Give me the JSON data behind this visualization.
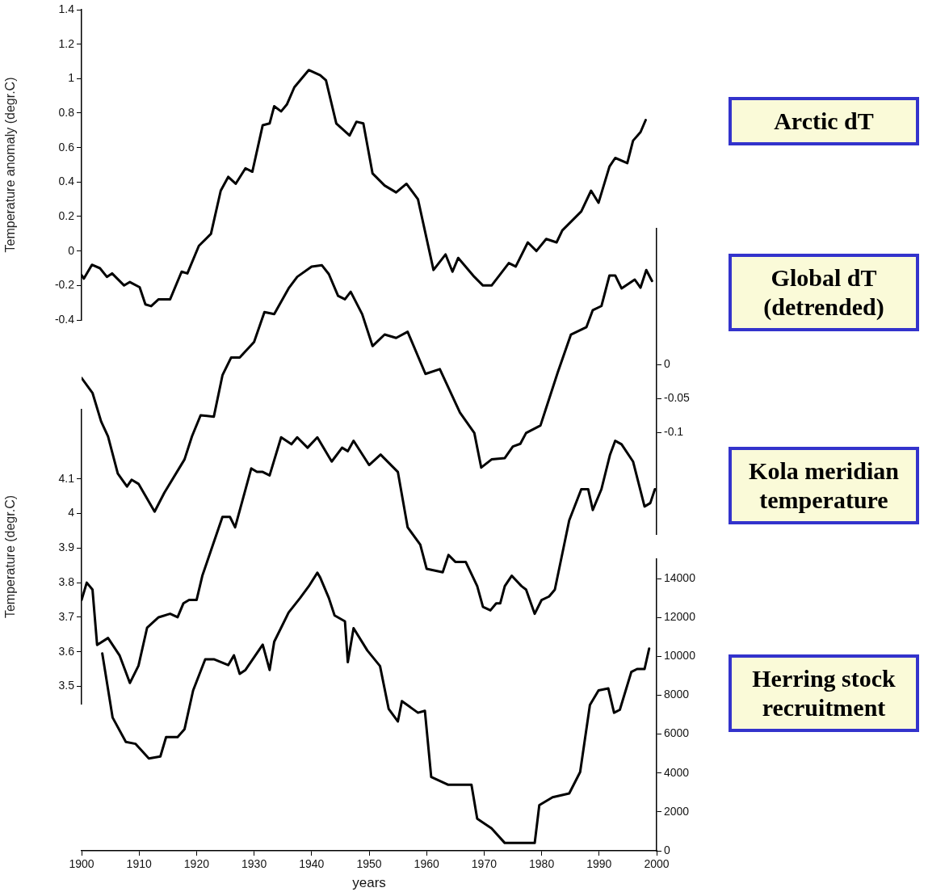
{
  "chart_data": [
    {
      "type": "line",
      "ylabel": "Temperature anomaly (degr.C)",
      "xlim": [
        1900,
        2000
      ],
      "ylim": [
        -0.4,
        1.4
      ],
      "yticks": [
        -0.4,
        -0.2,
        0,
        0.2,
        0.4,
        0.6,
        0.8,
        1,
        1.2,
        1.4
      ],
      "tick_labels": "y",
      "legend": false,
      "grid": false,
      "marker": "none",
      "series": [
        {
          "name": "Arctic dT",
          "color": "#000000",
          "x": [
            1900,
            1900.4,
            1901.8,
            1903.2,
            1904.4,
            1905.3,
            1907.4,
            1908.4,
            1910.1,
            1911.1,
            1912.1,
            1913.4,
            1915.4,
            1917.4,
            1918.4,
            1920.4,
            1922.5,
            1924.2,
            1925.5,
            1926.8,
            1928.5,
            1929.7,
            1931.5,
            1932.7,
            1933.5,
            1934.7,
            1935.7,
            1937,
            1939.5,
            1941.5,
            1942.5,
            1944.3,
            1946.6,
            1947.8,
            1949,
            1950.6,
            1952.7,
            1954.7,
            1956.5,
            1958.5,
            1961.2,
            1963.3,
            1964.5,
            1965.5,
            1968.3,
            1969.8,
            1971.3,
            1974.3,
            1975.5,
            1977.6,
            1979.1,
            1980.8,
            1982.6,
            1983.6,
            1986.9,
            1988.6,
            1989.9,
            1991.8,
            1992.8,
            1994.9,
            1995.9,
            1997.2,
            1998.1
          ],
          "values": [
            -0.14,
            -0.16,
            -0.08,
            -0.1,
            -0.15,
            -0.13,
            -0.2,
            -0.18,
            -0.21,
            -0.31,
            -0.32,
            -0.28,
            -0.28,
            -0.12,
            -0.13,
            0.03,
            0.1,
            0.35,
            0.43,
            0.39,
            0.48,
            0.46,
            0.73,
            0.74,
            0.84,
            0.81,
            0.85,
            0.95,
            1.05,
            1.02,
            0.99,
            0.74,
            0.67,
            0.75,
            0.74,
            0.45,
            0.38,
            0.34,
            0.39,
            0.3,
            -0.11,
            -0.02,
            -0.12,
            -0.04,
            -0.15,
            -0.2,
            -0.2,
            -0.07,
            -0.09,
            0.05,
            0,
            0.07,
            0.05,
            0.12,
            0.23,
            0.35,
            0.28,
            0.49,
            0.54,
            0.51,
            0.64,
            0.69,
            0.76
          ]
        }
      ]
    },
    {
      "type": "line",
      "xlim": [
        1900,
        2000
      ],
      "y2lim": [
        -0.25,
        0.2
      ],
      "y2ticks": [
        -0.1,
        -0.05,
        0
      ],
      "tick_labels": "y",
      "legend": false,
      "grid": false,
      "marker": "none",
      "series": [
        {
          "name": "Global dT (detrended)",
          "color": "#000000",
          "axis": "y2",
          "x": [
            1900,
            1901.9,
            1903.4,
            1904.6,
            1906.3,
            1907.9,
            1908.7,
            1909.9,
            1912.7,
            1914.4,
            1917.9,
            1919.2,
            1920.7,
            1923,
            1924.5,
            1926,
            1927.5,
            1930,
            1931.8,
            1933.5,
            1936,
            1937.5,
            1940,
            1941.8,
            1943,
            1944.6,
            1945.8,
            1946.8,
            1948.8,
            1950.6,
            1952.7,
            1954.7,
            1956.7,
            1959.8,
            1962.3,
            1965.8,
            1968.3,
            1969.5,
            1971.3,
            1973.6,
            1975,
            1976.3,
            1977.3,
            1979.8,
            1982.8,
            1985.1,
            1987.8,
            1988.9,
            1990.4,
            1991.8,
            1992.8,
            1993.9,
            1996.2,
            1997.2,
            1998.2,
            1999.2
          ],
          "values": [
            -0.02,
            -0.042,
            -0.084,
            -0.106,
            -0.161,
            -0.18,
            -0.17,
            -0.176,
            -0.217,
            -0.189,
            -0.14,
            -0.106,
            -0.075,
            -0.077,
            -0.016,
            0.01,
            0.01,
            0.033,
            0.077,
            0.074,
            0.112,
            0.129,
            0.144,
            0.146,
            0.133,
            0.101,
            0.096,
            0.107,
            0.074,
            0.027,
            0.044,
            0.039,
            0.048,
            -0.014,
            -0.007,
            -0.071,
            -0.101,
            -0.152,
            -0.14,
            -0.138,
            -0.121,
            -0.117,
            -0.101,
            -0.09,
            -0.012,
            0.044,
            0.055,
            0.08,
            0.086,
            0.131,
            0.131,
            0.112,
            0.125,
            0.113,
            0.139,
            0.123
          ]
        }
      ]
    },
    {
      "type": "line",
      "ylabel": "Temperature (degr.C)",
      "xlim": [
        1900,
        2000
      ],
      "ylim": [
        3.45,
        4.3
      ],
      "yticks": [
        3.5,
        3.6,
        3.7,
        3.8,
        3.9,
        4,
        4.1
      ],
      "tick_labels": "y",
      "legend": false,
      "grid": false,
      "marker": "none",
      "series": [
        {
          "name": "Kola meridian temperature",
          "color": "#000000",
          "x": [
            1900,
            1900.9,
            1901.9,
            1902.7,
            1904.6,
            1906.6,
            1908.4,
            1909.9,
            1911.4,
            1913.4,
            1915.4,
            1916.7,
            1917.7,
            1918.7,
            1920,
            1921,
            1924.5,
            1925.8,
            1926.7,
            1929.5,
            1930.5,
            1931.5,
            1932.7,
            1934.7,
            1936.5,
            1937.5,
            1939.3,
            1941,
            1943.5,
            1945.3,
            1946.3,
            1947.3,
            1950,
            1952,
            1955,
            1956.7,
            1958.9,
            1960,
            1962.8,
            1963.8,
            1965,
            1966.8,
            1968.8,
            1969.8,
            1971.1,
            1972.1,
            1972.8,
            1973.6,
            1974.8,
            1976.5,
            1977.3,
            1978.8,
            1980,
            1981.3,
            1982.3,
            1984.8,
            1986.9,
            1988.1,
            1988.9,
            1990.4,
            1991.9,
            1992.8,
            1993.9,
            1995.9,
            1997.9,
            1998.9,
            1999.7
          ],
          "values": [
            3.75,
            3.8,
            3.78,
            3.62,
            3.64,
            3.59,
            3.51,
            3.56,
            3.67,
            3.7,
            3.71,
            3.7,
            3.74,
            3.75,
            3.75,
            3.82,
            3.99,
            3.99,
            3.96,
            4.13,
            4.12,
            4.12,
            4.11,
            4.22,
            4.2,
            4.22,
            4.19,
            4.22,
            4.15,
            4.19,
            4.18,
            4.21,
            4.14,
            4.17,
            4.12,
            3.96,
            3.91,
            3.84,
            3.83,
            3.88,
            3.86,
            3.86,
            3.79,
            3.73,
            3.72,
            3.74,
            3.74,
            3.79,
            3.82,
            3.79,
            3.78,
            3.71,
            3.75,
            3.76,
            3.78,
            3.98,
            4.07,
            4.07,
            4.01,
            4.07,
            4.17,
            4.21,
            4.2,
            4.15,
            4.02,
            4.03,
            4.07
          ]
        }
      ]
    },
    {
      "type": "line",
      "xlabel": "years",
      "xlim": [
        1900,
        2000
      ],
      "xticks": [
        1900,
        1910,
        1920,
        1930,
        1940,
        1950,
        1960,
        1970,
        1980,
        1990,
        2000
      ],
      "y2lim": [
        0,
        15000
      ],
      "y2ticks": [
        0,
        2000,
        4000,
        6000,
        8000,
        10000,
        12000,
        14000
      ],
      "legend": false,
      "grid": false,
      "marker": "none",
      "series": [
        {
          "name": "Herring stock recruitment",
          "color": "#000000",
          "axis": "y2",
          "x": [
            1903.6,
            1905.4,
            1907.7,
            1909.4,
            1911.7,
            1913.7,
            1914.7,
            1916.7,
            1917.9,
            1919.4,
            1921.5,
            1923,
            1925.5,
            1926.5,
            1927.5,
            1928.5,
            1931.5,
            1932.7,
            1933.5,
            1936,
            1938,
            1939.5,
            1941,
            1941.5,
            1943,
            1944,
            1945.8,
            1946.3,
            1947.3,
            1949.7,
            1951.9,
            1953.4,
            1955,
            1955.7,
            1958.5,
            1959.7,
            1960.8,
            1963.7,
            1967.8,
            1968.8,
            1971.3,
            1973.6,
            1975.5,
            1978.8,
            1979.6,
            1981.9,
            1984.8,
            1986.7,
            1988.4,
            1989.9,
            1991.6,
            1992.6,
            1993.6,
            1995.6,
            1996.6,
            1997.9,
            1998.7
          ],
          "values": [
            10150,
            6850,
            5600,
            5500,
            4750,
            4850,
            5850,
            5850,
            6250,
            8250,
            9850,
            9850,
            9550,
            10050,
            9100,
            9300,
            10600,
            9300,
            10750,
            12250,
            13000,
            13600,
            14300,
            14050,
            13000,
            12100,
            11800,
            9700,
            11450,
            10300,
            9500,
            7300,
            6650,
            7700,
            7100,
            7200,
            3800,
            3400,
            3400,
            1650,
            1150,
            400,
            400,
            400,
            2350,
            2750,
            2950,
            4050,
            7500,
            8250,
            8350,
            7100,
            7250,
            9200,
            9350,
            9350,
            10400
          ]
        }
      ]
    }
  ]
}
